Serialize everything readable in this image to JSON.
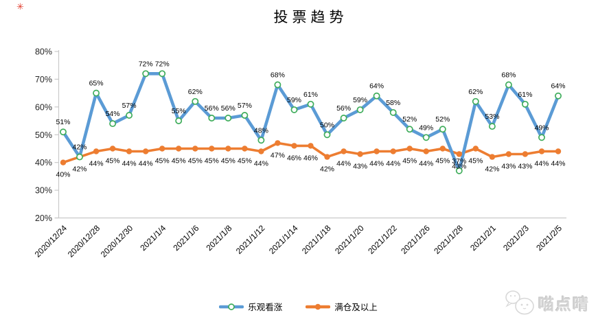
{
  "page": {
    "corner_mark": "✳"
  },
  "chart_data": {
    "type": "line",
    "title": "投票趋势",
    "x_labels": [
      "2020/12/24",
      "2020/12/28",
      "2020/12/30",
      "2021/1/4",
      "2021/1/6",
      "2021/1/8",
      "2021/1/12",
      "2021/1/14",
      "2021/1/18",
      "2021/1/20",
      "2021/1/22",
      "2021/1/26",
      "2021/1/28",
      "2021/2/1",
      "2021/2/3",
      "2021/2/5"
    ],
    "points_per_label": 2,
    "n_points": 31,
    "ylim": [
      20,
      80
    ],
    "yticks": [
      20,
      30,
      40,
      50,
      60,
      70,
      80
    ],
    "ytick_suffix": "%",
    "grid": false,
    "data_labels": true,
    "legend_position": "bottom",
    "axis_color": "#c9c9c9",
    "series": [
      {
        "name": "乐观看涨",
        "line_color": "#5B9BD5",
        "marker": "open-circle",
        "marker_stroke": "#3FAD5B",
        "marker_fill": "#ffffff",
        "label_position": "above",
        "values": [
          51,
          42,
          65,
          54,
          57,
          72,
          72,
          55,
          62,
          56,
          56,
          57,
          48,
          68,
          59,
          61,
          50,
          56,
          59,
          64,
          58,
          52,
          49,
          52,
          37,
          62,
          53,
          68,
          61,
          49,
          64
        ]
      },
      {
        "name": "满仓及以上",
        "line_color": "#ED7D31",
        "marker": "solid-circle",
        "marker_stroke": "#ED7D31",
        "marker_fill": "#ED7D31",
        "label_position": "below",
        "values": [
          40,
          42,
          44,
          45,
          44,
          44,
          45,
          45,
          45,
          45,
          45,
          45,
          44,
          47,
          46,
          46,
          42,
          44,
          43,
          44,
          44,
          45,
          44,
          45,
          43,
          45,
          42,
          43,
          43,
          44,
          44
        ]
      }
    ]
  },
  "watermark": {
    "text": "喵点晴",
    "icon": "cat-speech-bubbles"
  }
}
